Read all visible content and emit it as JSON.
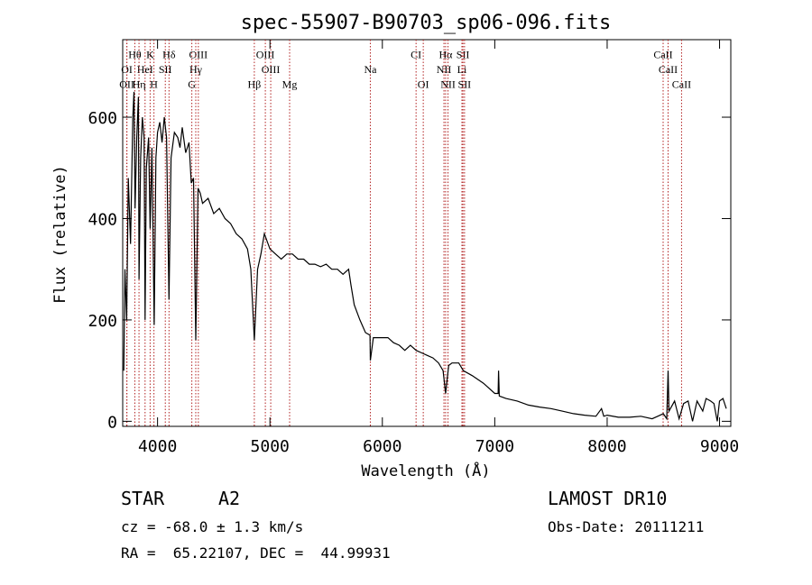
{
  "chart_data": {
    "type": "line",
    "title": "spec-55907-B90703_sp06-096.fits",
    "x_label": "Wavelength (Å)",
    "y_label": "Flux (relative)",
    "color": "#000000",
    "line_color": "#b22222",
    "xlim": [
      3690,
      9100
    ],
    "ylim": [
      -10,
      753
    ],
    "xticks": [
      4000,
      5000,
      6000,
      7000,
      8000,
      9000
    ],
    "yticks": [
      0,
      200,
      400,
      600
    ],
    "x": [
      3700,
      3710,
      3725,
      3740,
      3760,
      3780,
      3790,
      3800,
      3815,
      3830,
      3835,
      3850,
      3865,
      3880,
      3889,
      3900,
      3920,
      3934,
      3950,
      3970,
      3985,
      4000,
      4020,
      4040,
      4060,
      4080,
      4102,
      4120,
      4150,
      4180,
      4200,
      4220,
      4250,
      4280,
      4300,
      4320,
      4340,
      4360,
      4380,
      4400,
      4450,
      4500,
      4550,
      4600,
      4650,
      4700,
      4750,
      4800,
      4830,
      4861,
      4890,
      4920,
      4950,
      5000,
      5050,
      5100,
      5150,
      5200,
      5250,
      5300,
      5350,
      5400,
      5450,
      5500,
      5550,
      5600,
      5650,
      5700,
      5720,
      5750,
      5800,
      5850,
      5890,
      5893,
      5920,
      6000,
      6050,
      6100,
      6150,
      6200,
      6250,
      6300,
      6350,
      6400,
      6450,
      6500,
      6540,
      6563,
      6590,
      6620,
      6680,
      6720,
      6800,
      6900,
      7000,
      7030,
      7034,
      7040,
      7100,
      7200,
      7300,
      7400,
      7500,
      7600,
      7700,
      7800,
      7900,
      7950,
      7970,
      8000,
      8100,
      8200,
      8300,
      8400,
      8450,
      8500,
      8530,
      8542,
      8550,
      8600,
      8640,
      8680,
      8720,
      8760,
      8800,
      8850,
      8880,
      8920,
      8950,
      8980,
      9000,
      9030,
      9060
    ],
    "values": [
      100,
      300,
      200,
      480,
      350,
      600,
      650,
      420,
      560,
      640,
      280,
      520,
      600,
      560,
      200,
      500,
      560,
      380,
      540,
      190,
      520,
      570,
      590,
      550,
      600,
      560,
      240,
      520,
      570,
      560,
      540,
      580,
      530,
      550,
      470,
      480,
      160,
      460,
      450,
      430,
      440,
      410,
      420,
      400,
      390,
      370,
      360,
      340,
      300,
      160,
      300,
      330,
      370,
      340,
      330,
      320,
      330,
      330,
      320,
      320,
      310,
      310,
      305,
      310,
      300,
      300,
      290,
      300,
      270,
      230,
      200,
      175,
      170,
      120,
      165,
      165,
      165,
      155,
      150,
      140,
      150,
      140,
      135,
      130,
      125,
      115,
      100,
      55,
      110,
      115,
      115,
      100,
      90,
      75,
      55,
      55,
      100,
      50,
      45,
      40,
      32,
      28,
      25,
      20,
      15,
      12,
      10,
      25,
      10,
      12,
      8,
      8,
      10,
      5,
      10,
      15,
      5,
      100,
      20,
      40,
      5,
      35,
      40,
      0,
      40,
      20,
      45,
      40,
      35,
      0,
      40,
      45,
      25
    ],
    "lines": [
      {
        "label": "Hθ",
        "wavelength": 3798,
        "row": 1
      },
      {
        "label": "K",
        "wavelength": 3934,
        "row": 1
      },
      {
        "label": "Hδ",
        "wavelength": 4102,
        "row": 1
      },
      {
        "label": "OIII",
        "wavelength": 4363,
        "row": 1
      },
      {
        "label": "OIII",
        "wavelength": 4959,
        "row": 1
      },
      {
        "label": "CI",
        "wavelength": 6300,
        "row": 1
      },
      {
        "label": "Hα",
        "wavelength": 6563,
        "row": 1
      },
      {
        "label": "SII",
        "wavelength": 6717,
        "row": 1
      },
      {
        "label": "CaII",
        "wavelength": 8498,
        "row": 1
      },
      {
        "label": "OI",
        "wavelength": 3727,
        "row": 2
      },
      {
        "label": "HeI",
        "wavelength": 3889,
        "row": 2
      },
      {
        "label": "SII",
        "wavelength": 4069,
        "row": 2
      },
      {
        "label": "Hγ",
        "wavelength": 4340,
        "row": 2
      },
      {
        "label": "OIII",
        "wavelength": 5007,
        "row": 2
      },
      {
        "label": "Na",
        "wavelength": 5893,
        "row": 2
      },
      {
        "label": "NII",
        "wavelength": 6548,
        "row": 2
      },
      {
        "label": "Li",
        "wavelength": 6708,
        "row": 2
      },
      {
        "label": "CaII",
        "wavelength": 8542,
        "row": 2
      },
      {
        "label": "OII",
        "wavelength": 3727,
        "row": 3
      },
      {
        "label": "Hη",
        "wavelength": 3835,
        "row": 3
      },
      {
        "label": "H",
        "wavelength": 3968,
        "row": 3
      },
      {
        "label": "G",
        "wavelength": 4305,
        "row": 3
      },
      {
        "label": "Hβ",
        "wavelength": 4861,
        "row": 3
      },
      {
        "label": "Mg",
        "wavelength": 5175,
        "row": 3
      },
      {
        "label": "OI",
        "wavelength": 6364,
        "row": 3
      },
      {
        "label": "NII",
        "wavelength": 6584,
        "row": 3
      },
      {
        "label": "SII",
        "wavelength": 6731,
        "row": 3
      },
      {
        "label": "CaII",
        "wavelength": 8662,
        "row": 3
      }
    ],
    "info": {
      "class": "STAR",
      "subclass": "A2",
      "survey": "LAMOST DR10",
      "cz": "cz = -68.0 ± 1.3 km/s",
      "obs_date": "Obs-Date: 20111211",
      "coords": "RA =  65.22107, DEC =  44.99931"
    }
  }
}
